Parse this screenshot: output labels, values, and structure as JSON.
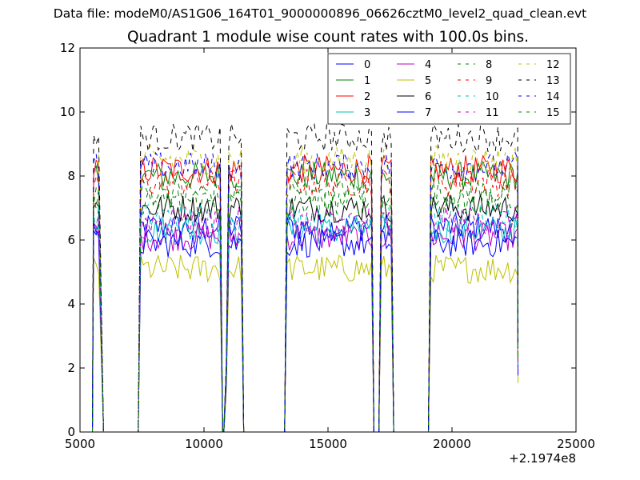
{
  "figure": {
    "suptitle": "Data file: modeM0/AS1G06_164T01_9000000896_06626cztM0_level2_quad_clean.evt"
  },
  "chart_data": {
    "type": "line",
    "title": "Quadrant 1 module wise count rates with 100.0s bins.",
    "xlabel": "",
    "ylabel": "",
    "xlim": [
      5000,
      25000
    ],
    "ylim": [
      0,
      12
    ],
    "x_offset_label": "+2.1974e8",
    "x_ticks": [
      5000,
      10000,
      15000,
      20000,
      25000
    ],
    "x_tick_labels": [
      "5000",
      "10000",
      "15000",
      "20000",
      "25000"
    ],
    "y_ticks": [
      0,
      2,
      4,
      6,
      8,
      10,
      12
    ],
    "y_tick_labels": [
      "0",
      "2",
      "4",
      "6",
      "8",
      "10",
      "12"
    ],
    "grid": false,
    "legend_position": "top-right",
    "legend_columns": 4,
    "segments": [
      {
        "start": 5550,
        "end": 5850,
        "step": 100
      },
      {
        "start": 7450,
        "end": 10650,
        "step": 100
      },
      {
        "start": 10900,
        "end": 11500,
        "step": 100
      },
      {
        "start": 13350,
        "end": 16750,
        "step": 100
      },
      {
        "start": 17150,
        "end": 17550,
        "step": 100
      },
      {
        "start": 19150,
        "end": 22650,
        "step": 100
      }
    ],
    "series": [
      {
        "name": "0",
        "color": "#0000ff",
        "dash": "solid",
        "level": 6.4
      },
      {
        "name": "1",
        "color": "#008000",
        "dash": "solid",
        "level": 8.0
      },
      {
        "name": "2",
        "color": "#ff0000",
        "dash": "solid",
        "level": 8.2
      },
      {
        "name": "3",
        "color": "#00bfbf",
        "dash": "solid",
        "level": 6.3
      },
      {
        "name": "4",
        "color": "#bf00bf",
        "dash": "solid",
        "level": 6.1
      },
      {
        "name": "5",
        "color": "#bfbf00",
        "dash": "solid",
        "level": 5.1
      },
      {
        "name": "6",
        "color": "#000000",
        "dash": "solid",
        "level": 7.0
      },
      {
        "name": "7",
        "color": "#0000ff",
        "dash": "solid",
        "level": 5.9
      },
      {
        "name": "8",
        "color": "#008000",
        "dash": "dashed",
        "level": 7.5
      },
      {
        "name": "9",
        "color": "#ff0000",
        "dash": "dashed",
        "level": 7.8
      },
      {
        "name": "10",
        "color": "#00bfbf",
        "dash": "dashed",
        "level": 6.7
      },
      {
        "name": "11",
        "color": "#bf00bf",
        "dash": "dashed",
        "level": 6.6
      },
      {
        "name": "12",
        "color": "#bfbf00",
        "dash": "dashed",
        "level": 8.5
      },
      {
        "name": "13",
        "color": "#000000",
        "dash": "dashed",
        "level": 9.2
      },
      {
        "name": "14",
        "color": "#0000ff",
        "dash": "dashed",
        "level": 8.3
      },
      {
        "name": "15",
        "color": "#008000",
        "dash": "dashed",
        "level": 7.2
      }
    ]
  }
}
